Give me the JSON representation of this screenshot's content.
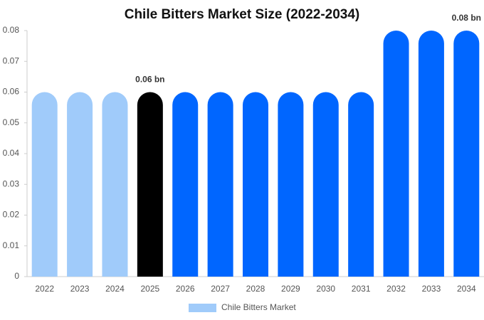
{
  "chart_data": {
    "type": "bar",
    "title": "Chile Bitters Market Size (2022-2034)",
    "categories": [
      "2022",
      "2023",
      "2024",
      "2025",
      "2026",
      "2027",
      "2028",
      "2029",
      "2030",
      "2031",
      "2032",
      "2033",
      "2034"
    ],
    "series": [
      {
        "name": "Chile Bitters Market",
        "color": "#a0cbfa",
        "values": [
          0.06,
          0.06,
          0.06,
          0.06,
          0.06,
          0.06,
          0.06,
          0.06,
          0.06,
          0.06,
          0.08,
          0.08,
          0.08
        ],
        "value_labels": [
          null,
          null,
          null,
          "0.06 bn",
          null,
          null,
          null,
          null,
          null,
          null,
          null,
          null,
          "0.08 bn"
        ],
        "colors": [
          "#a0cbfa",
          "#a0cbfa",
          "#a0cbfa",
          "#000000",
          "#0066ff",
          "#0066ff",
          "#0066ff",
          "#0066ff",
          "#0066ff",
          "#0066ff",
          "#0066ff",
          "#0066ff",
          "#0066ff"
        ]
      }
    ],
    "ylim": [
      0,
      0.08
    ],
    "yticks": [
      0,
      0.01,
      0.02,
      0.03,
      0.04,
      0.05,
      0.06,
      0.07,
      0.08
    ],
    "grid": false
  }
}
